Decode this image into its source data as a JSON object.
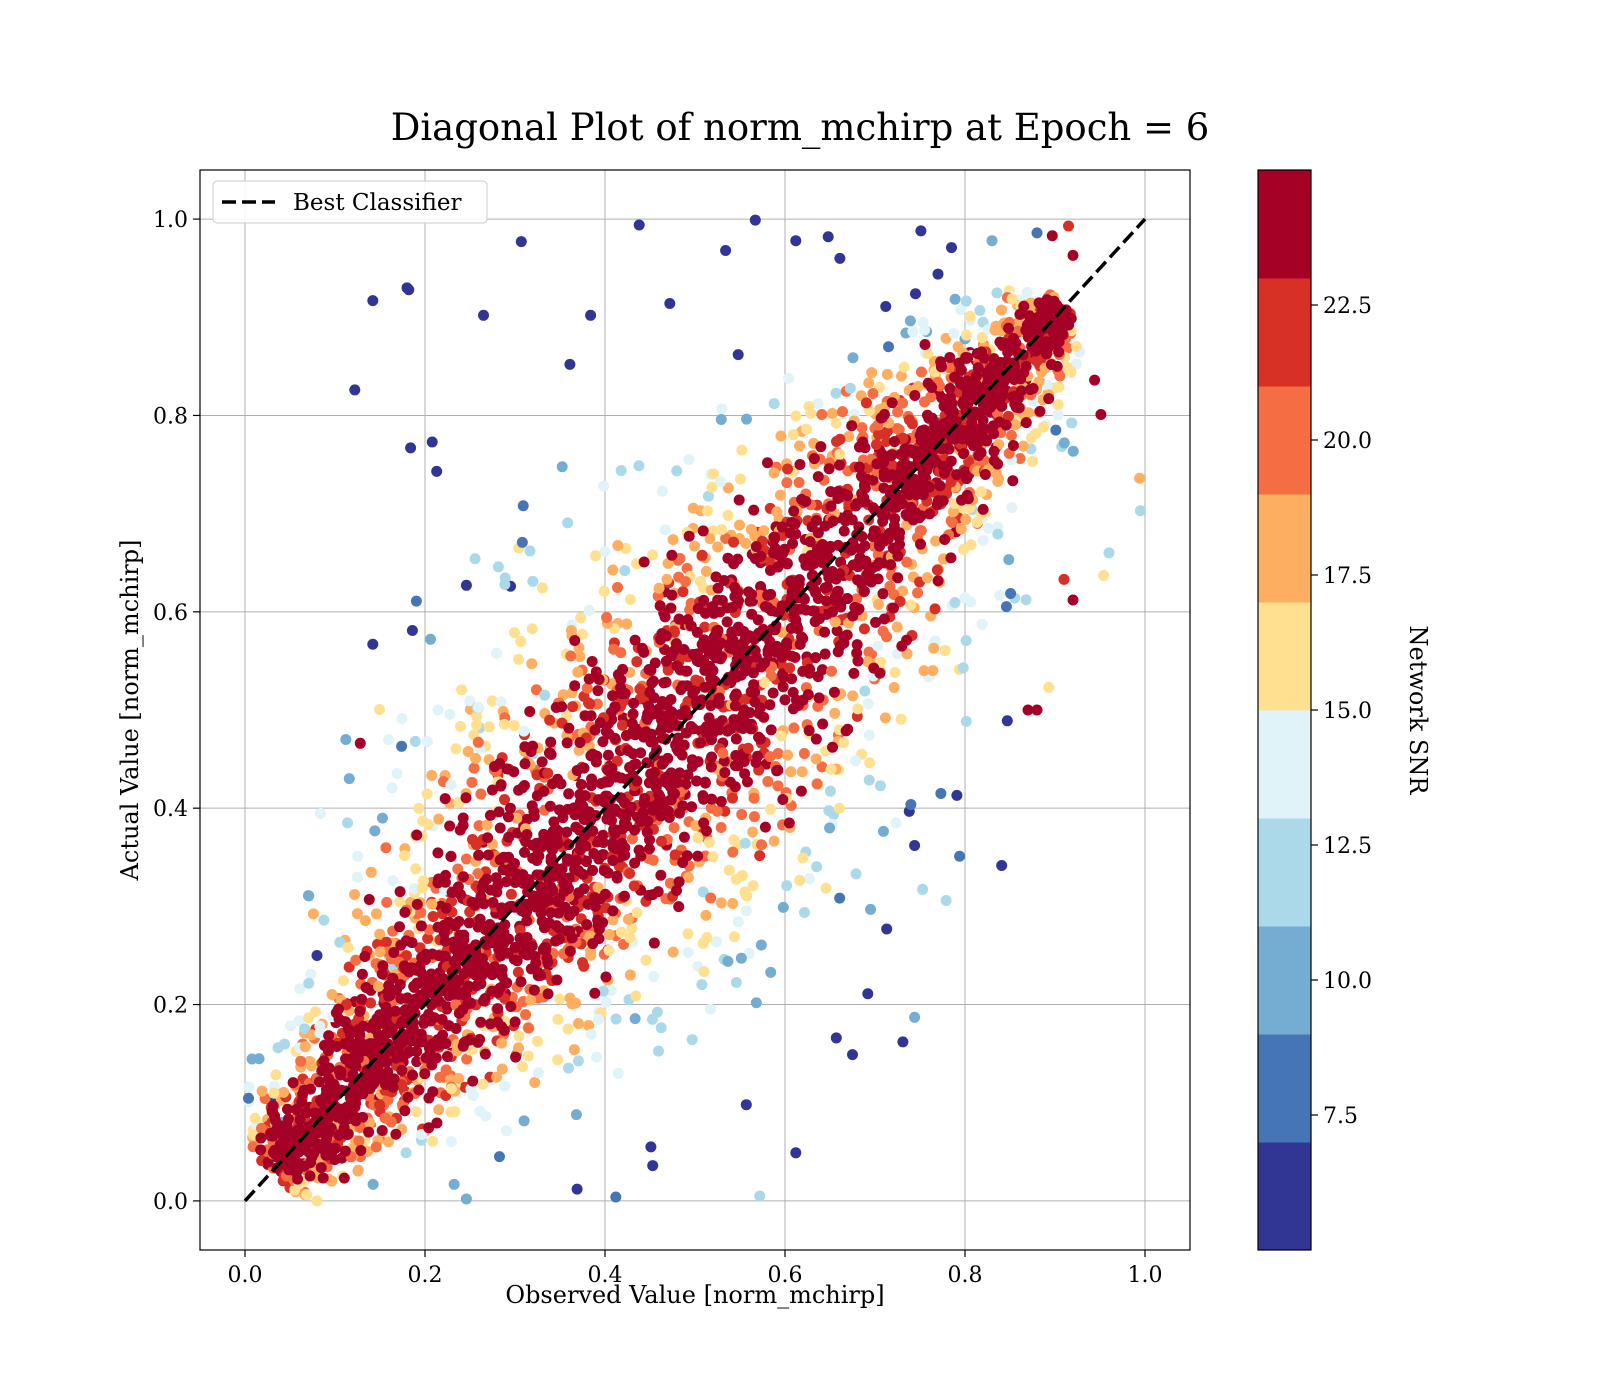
{
  "colors": {
    "reference_line": "#000000",
    "grid": "#b0b0b0",
    "legend_border": "#cccccc",
    "colorbar_bins": [
      "#313695",
      "#4575b4",
      "#74add1",
      "#abd9e9",
      "#e0f3f8",
      "#fee090",
      "#fdae61",
      "#f46d43",
      "#d73027",
      "#a50026"
    ]
  },
  "chart_data": {
    "type": "scatter",
    "title": "Diagonal Plot of norm_mchirp at Epoch = 6",
    "xlabel": "Observed Value [norm_mchirp]",
    "ylabel": "Actual Value [norm_mchirp]",
    "xlim": [
      -0.05,
      1.05
    ],
    "ylim": [
      -0.05,
      1.05
    ],
    "x_ticks": [
      "0.0",
      "0.2",
      "0.4",
      "0.6",
      "0.8",
      "1.0"
    ],
    "y_ticks": [
      "0.0",
      "0.2",
      "0.4",
      "0.6",
      "0.8",
      "1.0"
    ],
    "grid": true,
    "legend_position": "top-left",
    "reference_line": {
      "name": "Best Classifier",
      "x": [
        0.0,
        1.0
      ],
      "y": [
        0.0,
        1.0
      ],
      "style": "dashed"
    },
    "colorbar": {
      "label": "Network SNR",
      "vmin": 5.0,
      "vmax": 25.0,
      "tick_values": [
        7.5,
        10.0,
        12.5,
        15.0,
        17.5,
        20.0,
        22.5
      ],
      "tick_labels": [
        "7.5",
        "10.0",
        "12.5",
        "15.0",
        "17.5",
        "20.0",
        "22.5"
      ]
    },
    "points": [
      [
        0.18,
        0.93,
        6.0
      ],
      [
        0.142,
        0.917,
        6.0
      ],
      [
        0.182,
        0.928,
        6.0
      ],
      [
        0.122,
        0.826,
        6.0
      ],
      [
        0.265,
        0.902,
        6.2
      ],
      [
        0.534,
        0.968,
        6.0
      ],
      [
        0.612,
        0.978,
        6.3
      ],
      [
        0.648,
        0.982,
        6.0
      ],
      [
        0.567,
        0.999,
        6.5
      ],
      [
        0.438,
        0.994,
        6.1
      ],
      [
        0.307,
        0.977,
        6.2
      ],
      [
        0.208,
        0.773,
        6.0
      ],
      [
        0.184,
        0.767,
        6.1
      ],
      [
        0.213,
        0.743,
        6.0
      ],
      [
        0.142,
        0.567,
        6.0
      ],
      [
        0.112,
        0.47,
        10.0
      ],
      [
        0.186,
        0.581,
        6.0
      ],
      [
        0.246,
        0.627,
        6.2
      ],
      [
        0.295,
        0.626,
        6.1
      ],
      [
        0.361,
        0.852,
        6.1
      ],
      [
        0.472,
        0.914,
        6.1
      ],
      [
        0.384,
        0.902,
        6.0
      ],
      [
        0.548,
        0.862,
        6.0
      ],
      [
        0.661,
        0.96,
        6.0
      ],
      [
        0.751,
        0.988,
        6.2
      ],
      [
        0.785,
        0.971,
        6.5
      ],
      [
        0.731,
        0.162,
        6.0
      ],
      [
        0.657,
        0.166,
        6.0
      ],
      [
        0.744,
        0.187,
        10.0
      ],
      [
        0.794,
        0.351,
        8.0
      ],
      [
        0.779,
        0.306,
        12.0
      ],
      [
        0.744,
        0.362,
        6.0
      ],
      [
        0.612,
        0.049,
        6.0
      ],
      [
        0.572,
        0.005,
        12.0
      ],
      [
        0.412,
        0.004,
        8.0
      ],
      [
        0.246,
        0.002,
        10.0
      ],
      [
        0.369,
        0.012,
        6.0
      ],
      [
        0.453,
        0.036,
        6.2
      ],
      [
        0.675,
        0.149,
        6.0
      ],
      [
        0.692,
        0.211,
        6.0
      ],
      [
        0.557,
        0.098,
        6.0
      ],
      [
        0.451,
        0.055,
        6.0
      ],
      [
        0.713,
        0.277,
        6.2
      ],
      [
        0.791,
        0.413,
        6.0
      ],
      [
        0.847,
        0.489,
        6.0
      ],
      [
        0.88,
        0.5,
        24.0
      ],
      [
        0.87,
        0.5,
        23.5
      ],
      [
        0.893,
        0.523,
        15.5
      ],
      [
        0.92,
        0.612,
        24.0
      ],
      [
        0.91,
        0.633,
        22.0
      ],
      [
        0.954,
        0.637,
        15.0
      ],
      [
        0.96,
        0.66,
        11.5
      ],
      [
        0.995,
        0.703,
        12.0
      ],
      [
        0.994,
        0.736,
        17.0
      ],
      [
        0.951,
        0.801,
        24.0
      ],
      [
        0.944,
        0.836,
        23.0
      ],
      [
        0.9,
        0.91,
        24.0
      ],
      [
        0.92,
        0.963,
        23.5
      ],
      [
        0.915,
        0.993,
        21.0
      ],
      [
        0.897,
        0.983,
        24.0
      ],
      [
        0.895,
        0.92,
        22.5
      ],
      [
        0.82,
        0.895,
        11.5
      ],
      [
        0.8,
        0.878,
        10.0
      ],
      [
        0.828,
        0.867,
        16.0
      ],
      [
        0.83,
        0.978,
        9.5
      ],
      [
        0.745,
        0.924,
        6.0
      ],
      [
        0.715,
        0.87,
        8.0
      ],
      [
        0.77,
        0.944,
        6.0
      ],
      [
        0.88,
        0.986,
        8.0
      ],
      [
        0.04,
        0.03,
        24.0
      ],
      [
        0.06,
        0.05,
        23.5
      ],
      [
        0.04,
        0.08,
        10.0
      ],
      [
        0.03,
        0.1,
        6.0
      ],
      [
        0.04,
        0.04,
        17.0
      ],
      [
        0.05,
        0.013,
        17.5
      ],
      [
        0.09,
        0.07,
        15.0
      ],
      [
        0.08,
        0.25,
        6.0
      ],
      [
        0.09,
        0.16,
        11.5
      ]
    ]
  }
}
